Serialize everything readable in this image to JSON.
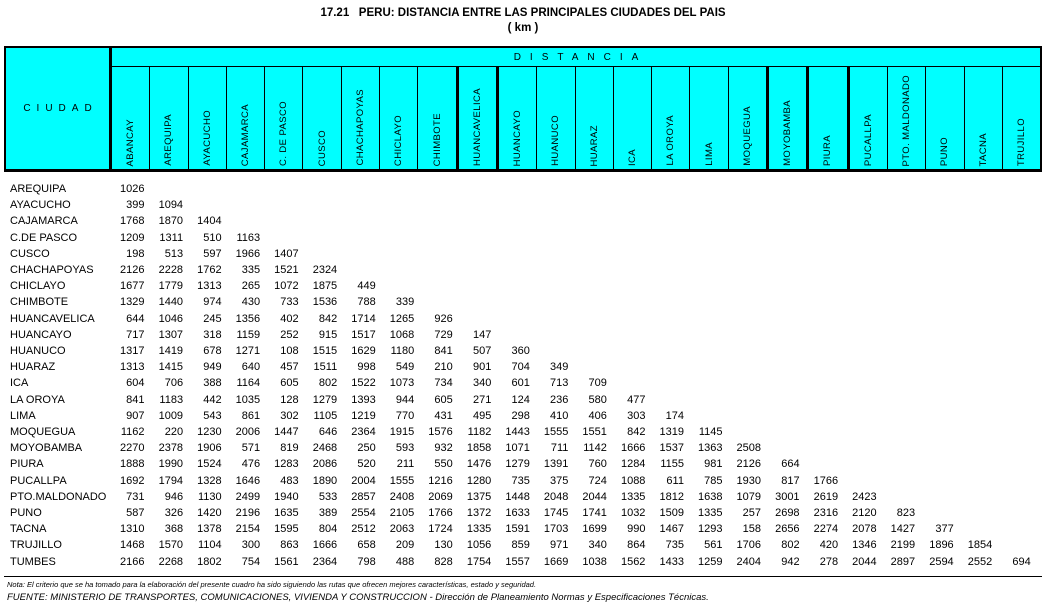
{
  "title": {
    "line1": "17.21   PERU: DISTANCIA ENTRE LAS PRINCIPALES CIUDADES DEL PAIS",
    "line2": "( km )"
  },
  "table": {
    "corner_label": "CIUDAD",
    "band_label": "DISTANCIA",
    "unit": "km",
    "columns": [
      "ABANCAY",
      "AREQUIPA",
      "AYACUCHO",
      "CAJAMARCA",
      "C. DE PASCO",
      "CUSCO",
      "CHACHAPOYAS",
      "CHICLAYO",
      "CHIMBOTE",
      "HUANCAVELICA",
      "HUANCAYO",
      "HUANUCO",
      "HUARAZ",
      "ICA",
      "LA OROYA",
      "LIMA",
      "MOQUEGUA",
      "MOYOBAMBA",
      "PIURA",
      "PUCALLPA",
      "PTO. MALDONADO",
      "PUNO",
      "TACNA",
      "TRUJILLO"
    ],
    "rows": [
      {
        "label": "AREQUIPA",
        "values": [
          1026
        ]
      },
      {
        "label": "AYACUCHO",
        "values": [
          399,
          1094
        ]
      },
      {
        "label": "CAJAMARCA",
        "values": [
          1768,
          1870,
          1404
        ]
      },
      {
        "label": "C.DE PASCO",
        "values": [
          1209,
          1311,
          510,
          1163
        ]
      },
      {
        "label": "CUSCO",
        "values": [
          198,
          513,
          597,
          1966,
          1407
        ]
      },
      {
        "label": "CHACHAPOYAS",
        "values": [
          2126,
          2228,
          1762,
          335,
          1521,
          2324
        ]
      },
      {
        "label": "CHICLAYO",
        "values": [
          1677,
          1779,
          1313,
          265,
          1072,
          1875,
          449
        ]
      },
      {
        "label": "CHIMBOTE",
        "values": [
          1329,
          1440,
          974,
          430,
          733,
          1536,
          788,
          339
        ]
      },
      {
        "label": "HUANCAVELICA",
        "values": [
          644,
          1046,
          245,
          1356,
          402,
          842,
          1714,
          1265,
          926
        ]
      },
      {
        "label": "HUANCAYO",
        "values": [
          717,
          1307,
          318,
          1159,
          252,
          915,
          1517,
          1068,
          729,
          147
        ]
      },
      {
        "label": "HUANUCO",
        "values": [
          1317,
          1419,
          678,
          1271,
          108,
          1515,
          1629,
          1180,
          841,
          507,
          360
        ]
      },
      {
        "label": "HUARAZ",
        "values": [
          1313,
          1415,
          949,
          640,
          457,
          1511,
          998,
          549,
          210,
          901,
          704,
          349
        ]
      },
      {
        "label": "ICA",
        "values": [
          604,
          706,
          388,
          1164,
          605,
          802,
          1522,
          1073,
          734,
          340,
          601,
          713,
          709
        ]
      },
      {
        "label": "LA OROYA",
        "values": [
          841,
          1183,
          442,
          1035,
          128,
          1279,
          1393,
          944,
          605,
          271,
          124,
          236,
          580,
          477
        ]
      },
      {
        "label": "LIMA",
        "values": [
          907,
          1009,
          543,
          861,
          302,
          1105,
          1219,
          770,
          431,
          495,
          298,
          410,
          406,
          303,
          174
        ]
      },
      {
        "label": "MOQUEGUA",
        "values": [
          1162,
          220,
          1230,
          2006,
          1447,
          646,
          2364,
          1915,
          1576,
          1182,
          1443,
          1555,
          1551,
          842,
          1319,
          1145
        ]
      },
      {
        "label": "MOYOBAMBA",
        "values": [
          2270,
          2378,
          1906,
          571,
          819,
          2468,
          250,
          593,
          932,
          1858,
          1071,
          711,
          1142,
          1666,
          1537,
          1363,
          2508
        ]
      },
      {
        "label": "PIURA",
        "values": [
          1888,
          1990,
          1524,
          476,
          1283,
          2086,
          520,
          211,
          550,
          1476,
          1279,
          1391,
          760,
          1284,
          1155,
          981,
          2126,
          664
        ]
      },
      {
        "label": "PUCALLPA",
        "values": [
          1692,
          1794,
          1328,
          1646,
          483,
          1890,
          2004,
          1555,
          1216,
          1280,
          735,
          375,
          724,
          1088,
          611,
          785,
          1930,
          817,
          1766
        ]
      },
      {
        "label": "PTO.MALDONADO",
        "values": [
          731,
          946,
          1130,
          2499,
          1940,
          533,
          2857,
          2408,
          2069,
          1375,
          1448,
          2048,
          2044,
          1335,
          1812,
          1638,
          1079,
          3001,
          2619,
          2423
        ]
      },
      {
        "label": "PUNO",
        "values": [
          587,
          326,
          1420,
          2196,
          1635,
          389,
          2554,
          2105,
          1766,
          1372,
          1633,
          1745,
          1741,
          1032,
          1509,
          1335,
          257,
          2698,
          2316,
          2120,
          823
        ]
      },
      {
        "label": "TACNA",
        "values": [
          1310,
          368,
          1378,
          2154,
          1595,
          804,
          2512,
          2063,
          1724,
          1335,
          1591,
          1703,
          1699,
          990,
          1467,
          1293,
          158,
          2656,
          2274,
          2078,
          1427,
          377
        ]
      },
      {
        "label": "TRUJILLO",
        "values": [
          1468,
          1570,
          1104,
          300,
          863,
          1666,
          658,
          209,
          130,
          1056,
          859,
          971,
          340,
          864,
          735,
          561,
          1706,
          802,
          420,
          1346,
          2199,
          1896,
          1854
        ]
      },
      {
        "label": "TUMBES",
        "values": [
          2166,
          2268,
          1802,
          754,
          1561,
          2364,
          798,
          488,
          828,
          1754,
          1557,
          1669,
          1038,
          1562,
          1433,
          1259,
          2404,
          942,
          278,
          2044,
          2897,
          2594,
          2552,
          694
        ]
      }
    ]
  },
  "footer": {
    "note": "Nota: El criterio que se ha tomado para la elaboración del presente cuadro ha sido siguiendo las rutas que ofrecen mejores características, estado y seguridad.",
    "source": "FUENTE: MINISTERIO DE TRANSPORTES, COMUNICACIONES, VIVIENDA Y CONSTRUCCION - Dirección de Planeamiento Normas y Especificaciones Técnicas."
  },
  "colors": {
    "header_bg": "#00FFFF",
    "border": "#000000",
    "text": "#000000",
    "page_bg": "#FFFFFF"
  }
}
